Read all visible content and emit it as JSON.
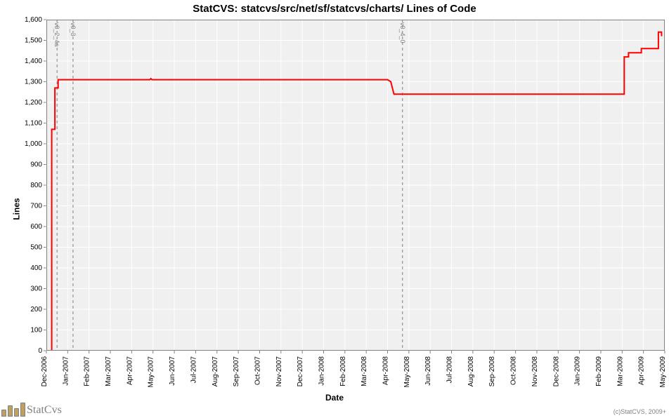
{
  "chart": {
    "title": "StatCVS: statcvs/src/net/sf/statcvs/charts/ Lines of Code",
    "title_fontsize": 15,
    "xlabel": "Date",
    "ylabel": "Lines",
    "label_fontsize": 12,
    "plot_background": "#f0f0f0",
    "page_background": "#ffffff",
    "grid_color": "#ffffff",
    "border_color": "#808080",
    "line_color": "#ff0000",
    "line_width": 2,
    "ylim": [
      0,
      1600
    ],
    "ytick_step": 100,
    "tick_fontsize": 10,
    "x_ticks": [
      "Dec-2006",
      "Jan-2007",
      "Feb-2007",
      "Mar-2007",
      "Apr-2007",
      "May-2007",
      "Jun-2007",
      "Jul-2007",
      "Aug-2007",
      "Sep-2007",
      "Oct-2007",
      "Nov-2007",
      "Dec-2007",
      "Jan-2008",
      "Feb-2008",
      "Mar-2008",
      "Apr-2008",
      "May-2008",
      "Jun-2008",
      "Jul-2008",
      "Aug-2008",
      "Sep-2008",
      "Oct-2008",
      "Nov-2008",
      "Dec-2008",
      "Jan-2009",
      "Feb-2009",
      "Mar-2009",
      "Apr-2009",
      "May-2009"
    ],
    "series": [
      {
        "x": 0.25,
        "y": 0
      },
      {
        "x": 0.25,
        "y": 1070
      },
      {
        "x": 0.4,
        "y": 1070
      },
      {
        "x": 0.4,
        "y": 1270
      },
      {
        "x": 0.55,
        "y": 1270
      },
      {
        "x": 0.55,
        "y": 1310
      },
      {
        "x": 4.85,
        "y": 1310
      },
      {
        "x": 4.9,
        "y": 1315
      },
      {
        "x": 4.95,
        "y": 1310
      },
      {
        "x": 16.0,
        "y": 1310
      },
      {
        "x": 16.15,
        "y": 1300
      },
      {
        "x": 16.3,
        "y": 1240
      },
      {
        "x": 27.1,
        "y": 1240
      },
      {
        "x": 27.1,
        "y": 1420
      },
      {
        "x": 27.3,
        "y": 1420
      },
      {
        "x": 27.3,
        "y": 1440
      },
      {
        "x": 27.9,
        "y": 1440
      },
      {
        "x": 27.9,
        "y": 1460
      },
      {
        "x": 28.7,
        "y": 1460
      },
      {
        "x": 28.7,
        "y": 1540
      },
      {
        "x": 28.85,
        "y": 1540
      },
      {
        "x": 28.85,
        "y": 1520
      }
    ],
    "annotations": [
      {
        "x": 0.5,
        "label": "v0_2_4a"
      },
      {
        "x": 1.25,
        "label": "v0_3"
      },
      {
        "x": 16.7,
        "label": "v0_4_0"
      }
    ],
    "annotation_color": "#808080",
    "annotation_fontsize": 9
  },
  "footer": {
    "brand": "StatCvs",
    "copyright": "(c)StatCVS, 2009+",
    "brand_fontsize": 16,
    "brand_color": "#808080",
    "logo_bar_colors": [
      "#c0a060",
      "#c0a060",
      "#c0a060",
      "#c0a060"
    ]
  }
}
